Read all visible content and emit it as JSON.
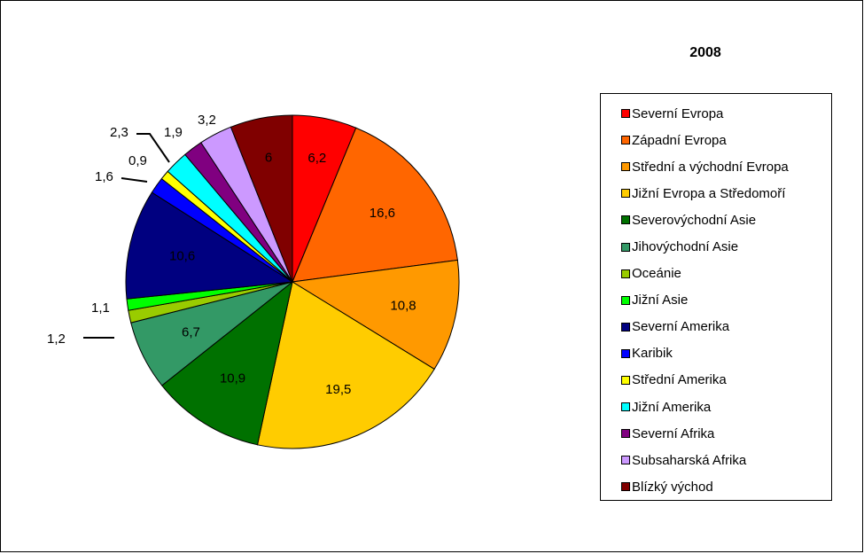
{
  "chart_data": {
    "type": "pie",
    "title": "2008",
    "legend_position": "right",
    "slices": [
      {
        "name": "Severní Evropa",
        "value": 6.2,
        "label": "6,2",
        "color": "#ff0000"
      },
      {
        "name": "Západní Evropa",
        "value": 16.6,
        "label": "16,6",
        "color": "#ff6600"
      },
      {
        "name": "Střední a východní Evropa",
        "value": 10.8,
        "label": "10,8",
        "color": "#ff9900"
      },
      {
        "name": "Jižní Evropa a Středomoří",
        "value": 19.5,
        "label": "19,5",
        "color": "#ffcc00"
      },
      {
        "name": "Severovýchodní Asie",
        "value": 10.9,
        "label": "10,9",
        "color": "#007100"
      },
      {
        "name": "Jihovýchodní Asie",
        "value": 6.7,
        "label": "6,7",
        "color": "#339966"
      },
      {
        "name": "Oceánie",
        "value": 1.2,
        "label": "1,2",
        "color": "#99cc00"
      },
      {
        "name": "Jižní Asie",
        "value": 1.1,
        "label": "1,1",
        "color": "#00ff00"
      },
      {
        "name": "Severní Amerika",
        "value": 10.6,
        "label": "10,6",
        "color": "#000080"
      },
      {
        "name": "Karibik",
        "value": 1.6,
        "label": "1,6",
        "color": "#0000ff"
      },
      {
        "name": "Střední Amerika",
        "value": 0.9,
        "label": "0,9",
        "color": "#ffff00"
      },
      {
        "name": "Jižní Amerika",
        "value": 2.3,
        "label": "2,3",
        "color": "#00ffff"
      },
      {
        "name": "Severní Afrika",
        "value": 1.9,
        "label": "1,9",
        "color": "#800080"
      },
      {
        "name": "Subsaharská Afrika",
        "value": 3.2,
        "label": "3,2",
        "color": "#cc99ff"
      },
      {
        "name": "Blízký východ",
        "value": 6,
        "label": "6",
        "color": "#800000"
      }
    ]
  }
}
